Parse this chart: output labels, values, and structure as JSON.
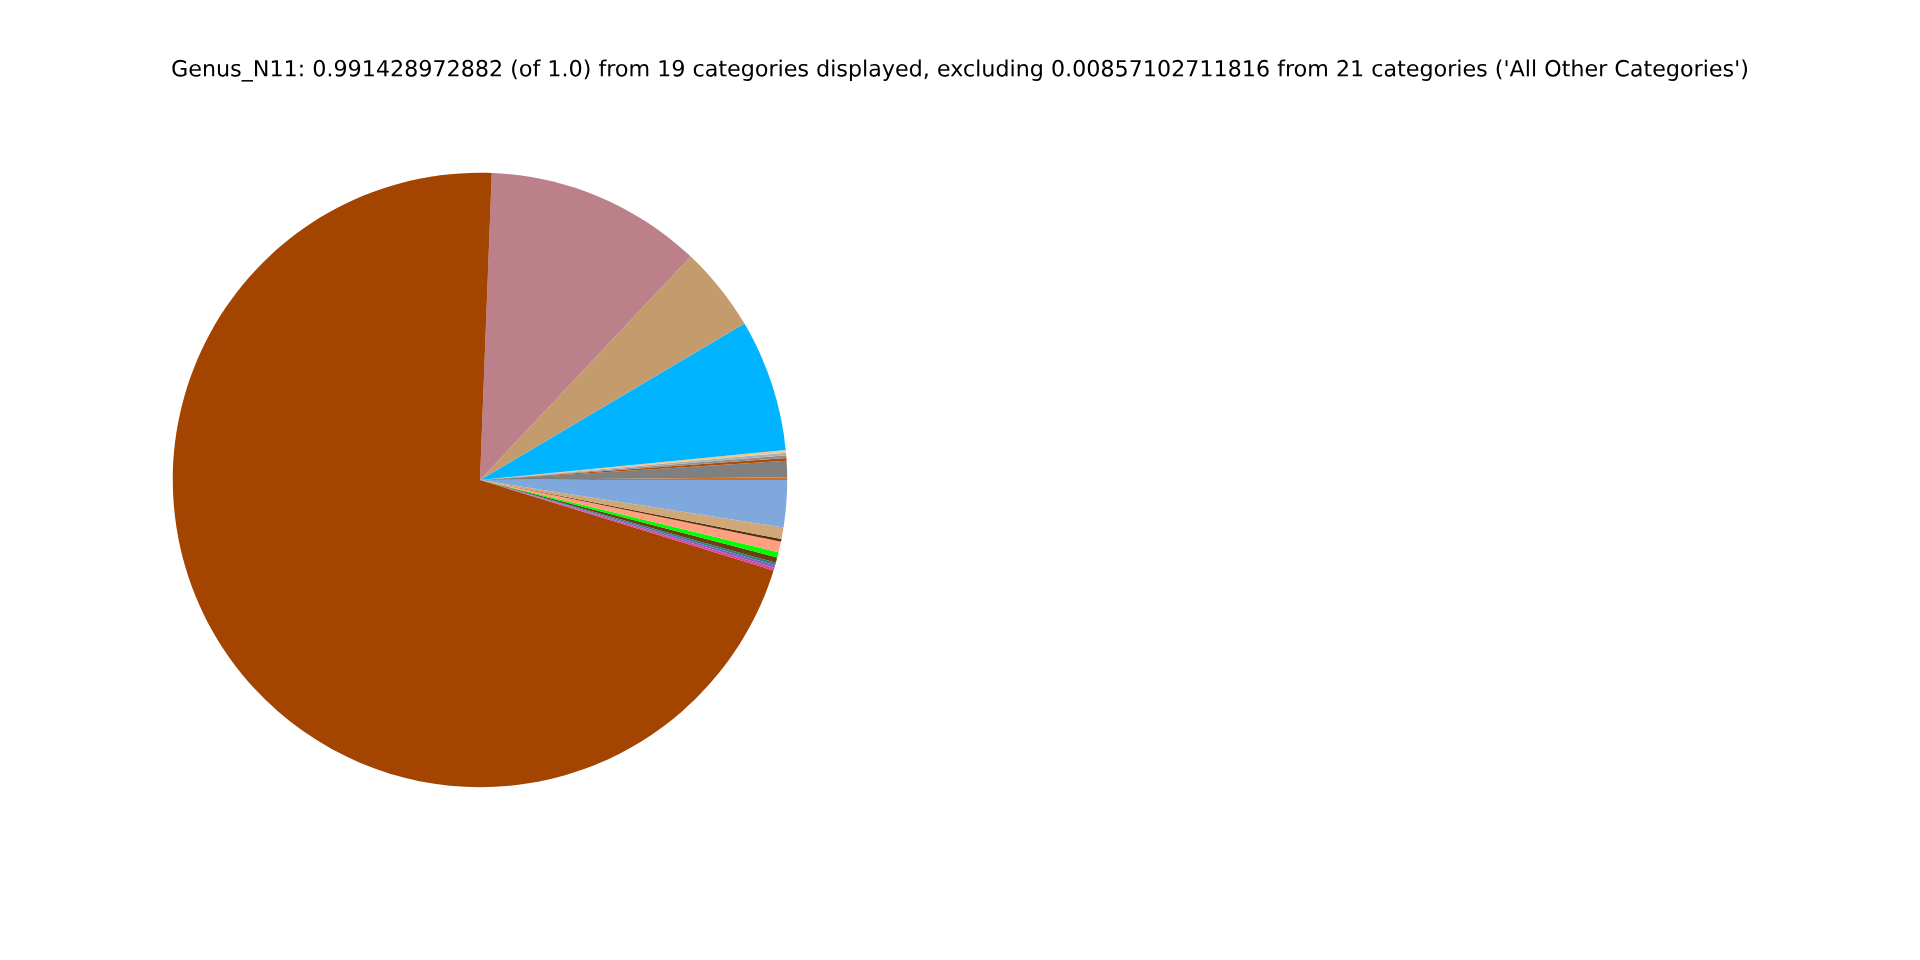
{
  "chart_data": {
    "type": "pie",
    "title": "Genus_N11: 0.991428972882 (of 1.0) from 19 categories displayed, excluding 0.00857102711816 from 21 categories ('All Other Categories')",
    "categories": [
      null,
      null,
      null,
      null,
      null,
      null,
      null,
      null,
      null,
      null,
      null,
      null,
      null,
      null,
      null,
      null,
      null,
      null,
      null
    ],
    "values": [
      0.14,
      0.86,
      0.14,
      0.14,
      0.14,
      0.14,
      6.94,
      4.47,
      11.42,
      70.85,
      0.14,
      0.14,
      0.14,
      0.28,
      0.28,
      0.56,
      0.14,
      0.61,
      2.47
    ],
    "colors": [
      "#d07020",
      "#808080",
      "#b04a08",
      "#909090",
      "#b0b0b0",
      "#f0c890",
      "#00b4ff",
      "#c49b6c",
      "#bc808b",
      "#a34400",
      "#e040a0",
      "#8060c0",
      "#308080",
      "#6b3e10",
      "#00ff00",
      "#ff9f80",
      "#583010",
      "#d0a878",
      "#7fa8dc"
    ]
  }
}
